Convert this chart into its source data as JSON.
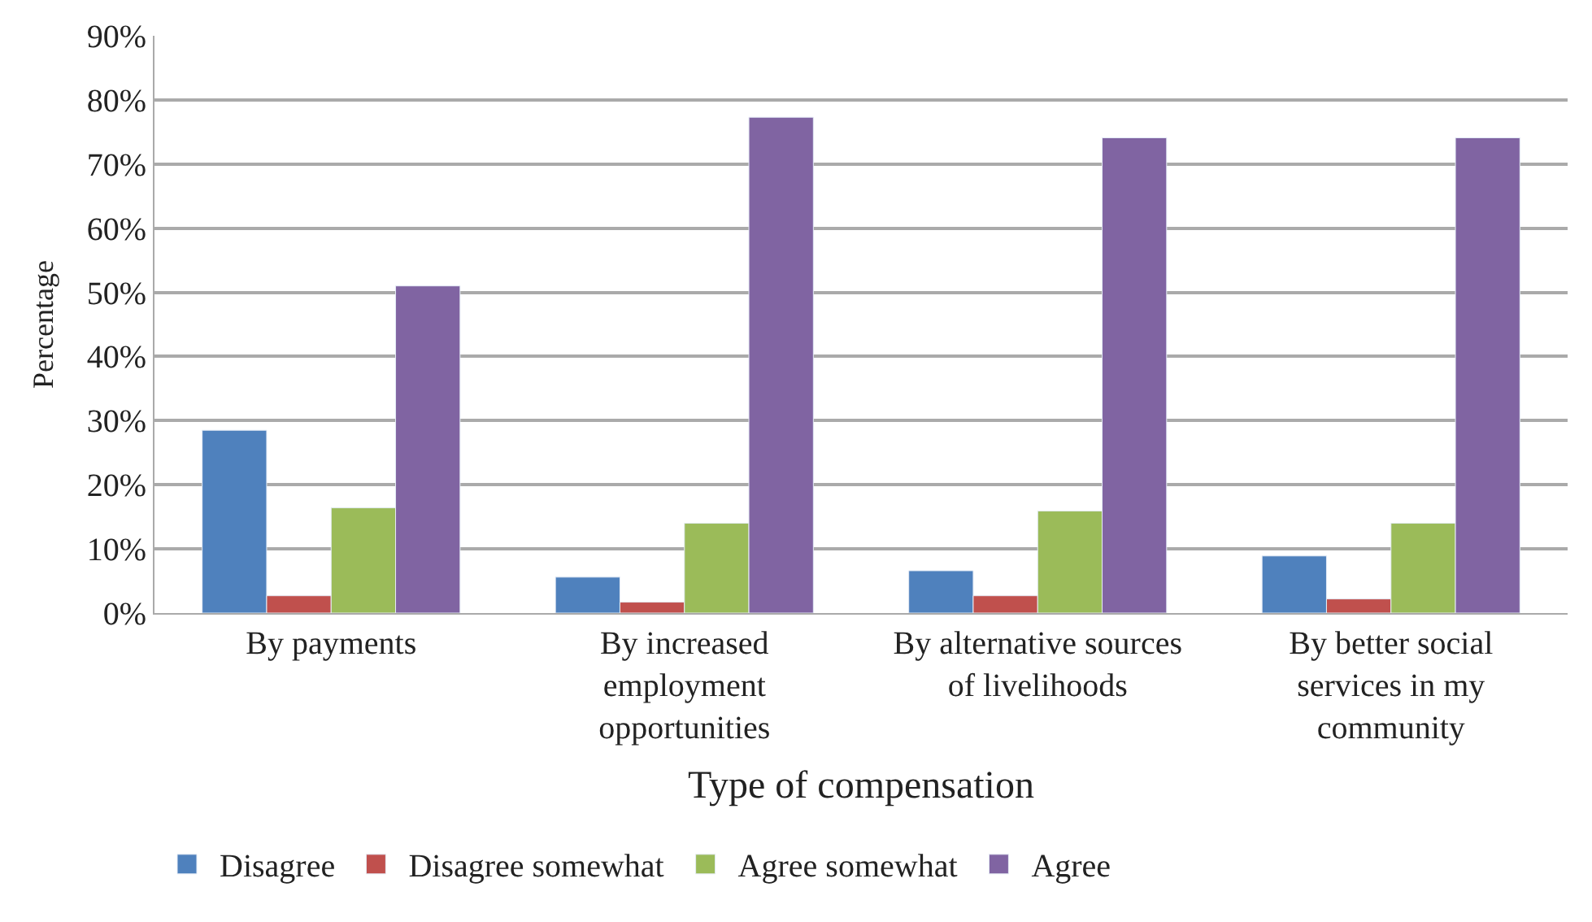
{
  "chart_data": {
    "type": "bar",
    "xlabel": "Type of compensation",
    "ylabel": "Percentage",
    "categories": [
      "By payments",
      "By increased employment opportunities",
      "By alternative sources of livelihoods",
      "By better social services in my community"
    ],
    "series": [
      {
        "name": "Disagree",
        "color": "#4f81bd",
        "values": [
          28.5,
          5.6,
          6.6,
          8.9
        ]
      },
      {
        "name": "Disagree somewhat",
        "color": "#c0504d",
        "values": [
          2.7,
          1.7,
          2.7,
          2.2
        ]
      },
      {
        "name": "Agree somewhat",
        "color": "#9bbb59",
        "values": [
          16.4,
          14,
          15.9,
          14
        ]
      },
      {
        "name": "Agree",
        "color": "#8064a2",
        "values": [
          51,
          77.3,
          74.1,
          74.1
        ]
      }
    ],
    "ylim": [
      0,
      90
    ],
    "yticks": [
      {
        "value": 0,
        "label": "0%"
      },
      {
        "value": 10,
        "label": "10%"
      },
      {
        "value": 20,
        "label": "20%"
      },
      {
        "value": 30,
        "label": "30%"
      },
      {
        "value": 40,
        "label": "40%"
      },
      {
        "value": 50,
        "label": "50%"
      },
      {
        "value": 60,
        "label": "60%"
      },
      {
        "value": 70,
        "label": "70%"
      },
      {
        "value": 80,
        "label": "80%"
      },
      {
        "value": 90,
        "label": "90%"
      }
    ],
    "grid": "y",
    "legend": "bottom"
  }
}
